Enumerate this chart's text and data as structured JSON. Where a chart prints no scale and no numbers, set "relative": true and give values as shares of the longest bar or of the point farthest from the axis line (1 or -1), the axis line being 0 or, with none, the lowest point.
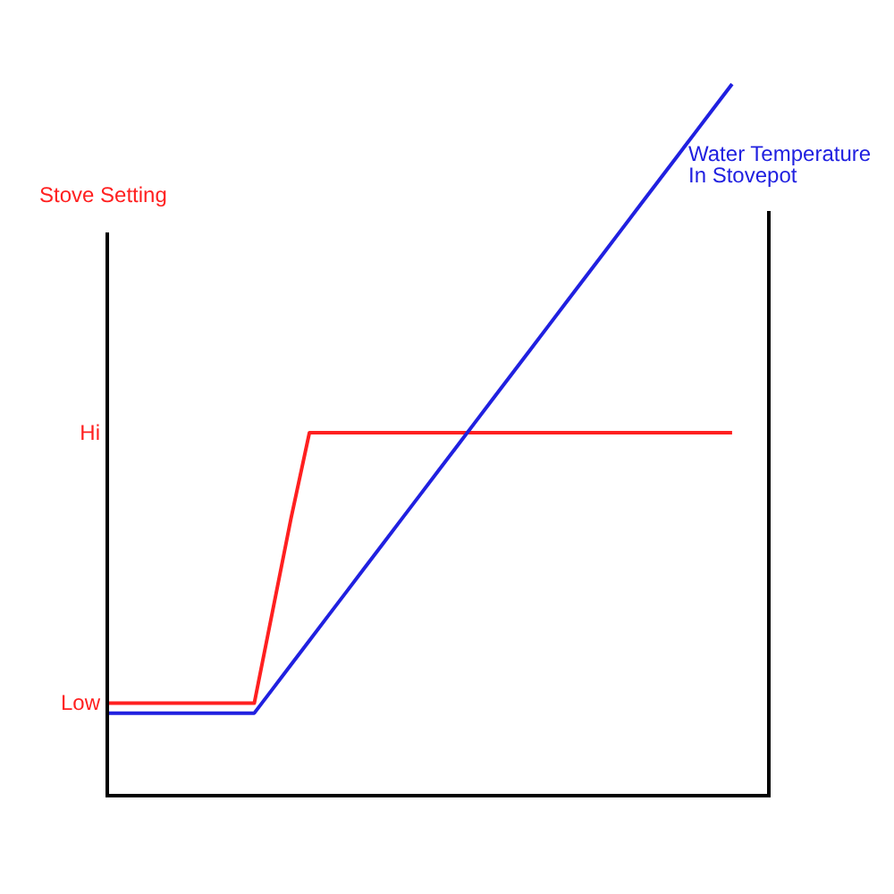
{
  "chart_data": {
    "type": "line",
    "ylabel": "Stove Setting",
    "relative": true,
    "categories": [
      null,
      null,
      null,
      null,
      null,
      null,
      null,
      null,
      null,
      null,
      null,
      null,
      null,
      null,
      null,
      null,
      null,
      null,
      null,
      null,
      null,
      null,
      null,
      null,
      null,
      null,
      null,
      null,
      null,
      null,
      null,
      null,
      null,
      null,
      null,
      null,
      null
    ],
    "annotations": [
      "Low",
      "Hi"
    ],
    "legend": false,
    "marker": "none",
    "line_style": "solid",
    "series": [
      {
        "color": "#ff2020",
        "values": [
          0.13,
          0.13,
          0.13,
          0.13,
          0.13,
          0.13,
          0.13,
          0.13,
          0.13,
          0.26,
          0.39,
          0.51,
          0.51,
          0.51,
          0.51,
          0.51,
          0.51,
          0.51,
          0.51,
          0.51,
          0.51,
          0.51,
          0.51,
          0.51,
          0.51,
          0.51,
          0.51,
          0.51,
          0.51,
          0.51,
          0.51,
          0.51,
          0.51,
          0.51,
          0.51,
          null,
          null
        ]
      },
      {
        "name": "Water Temperature In Stovepot",
        "color": "#2020e0",
        "values": [
          0.116,
          0.116,
          0.116,
          0.116,
          0.116,
          0.116,
          0.116,
          0.116,
          0.116,
          0.15,
          0.184,
          0.218,
          0.252,
          0.286,
          0.32,
          0.354,
          0.388,
          0.422,
          0.456,
          0.49,
          0.524,
          0.558,
          0.592,
          0.626,
          0.66,
          0.694,
          0.728,
          0.762,
          0.796,
          0.83,
          0.864,
          0.898,
          0.932,
          0.966,
          1,
          null,
          null
        ]
      }
    ]
  }
}
